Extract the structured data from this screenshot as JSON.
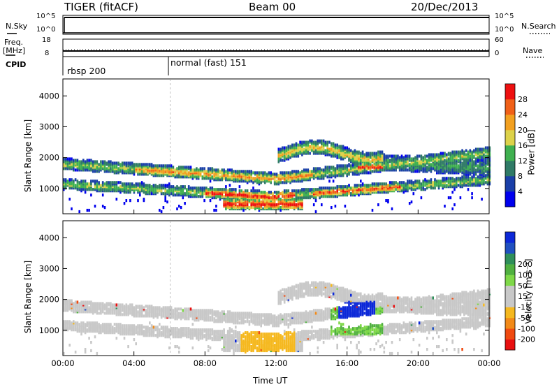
{
  "header": {
    "radar": "TIGER (fitACF)",
    "beam": "Beam 00",
    "date": "20/Dec/2013"
  },
  "params": {
    "nsky_label": "N.Sky",
    "nsky_ticks": [
      "10^5",
      "10^0"
    ],
    "nsearch_label": "N.Search",
    "nsearch_ticks": [
      "10^5",
      "10^0"
    ],
    "freq_label": "Freq.",
    "freq_unit": "[MHz]",
    "freq_ticks": [
      "18",
      "8"
    ],
    "nave_label": "Nave",
    "nave_ticks": [
      "60",
      "0"
    ],
    "cpid_label": "CPID",
    "cpid_segments": [
      "rbsp 200",
      "normal (fast) 151"
    ]
  },
  "colors": {
    "power_scale": [
      "#0000ee",
      "#1a3fa8",
      "#2f7a66",
      "#3fb050",
      "#ddd24a",
      "#f2a020",
      "#f06018",
      "#ee1010"
    ],
    "velocity_scale": [
      "#e81010",
      "#f04a10",
      "#f28a18",
      "#f5b81f",
      "#c8c8c8",
      "#c8c8c8",
      "#7ed848",
      "#50b040",
      "#2f8f5a",
      "#2050c0",
      "#0c28d8"
    ]
  },
  "chart_data": [
    {
      "type": "heatmap",
      "panel": "power",
      "ylabel": "Slant Range [km]",
      "ylim": [
        180,
        4550
      ],
      "yticks": [
        "1000",
        "2000",
        "3000",
        "4000"
      ],
      "xlim": [
        "00:00",
        "24:00"
      ],
      "colorbar_label": "Power [dB]",
      "colorbar_ticks": [
        "4",
        "8",
        "12",
        "16",
        "20",
        "24",
        "28"
      ],
      "colorbar_range": [
        0,
        32
      ]
    },
    {
      "type": "heatmap",
      "panel": "velocity",
      "ylabel": "Slant Range [km]",
      "ylim": [
        180,
        4550
      ],
      "yticks": [
        "1000",
        "2000",
        "3000",
        "4000"
      ],
      "xlabel": "Time UT",
      "xticks": [
        "00:00",
        "04:00",
        "08:00",
        "12:00",
        "16:00",
        "20:00",
        "00:00"
      ],
      "colorbar_label": "Velocity [m s⁻¹]",
      "colorbar_ticks": [
        "-200",
        "-100",
        "-50",
        "-15",
        "15",
        "50",
        "100",
        "200"
      ],
      "colorbar_range": [
        -250,
        250
      ]
    }
  ]
}
